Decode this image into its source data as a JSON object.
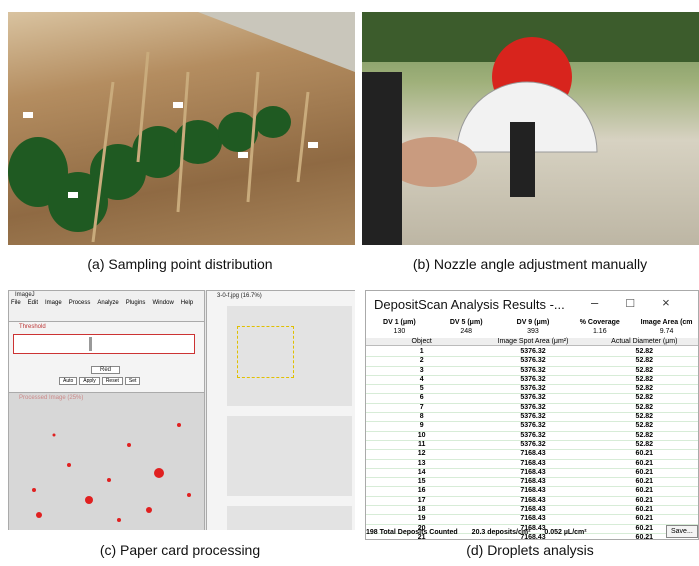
{
  "panels": [
    {
      "caption": "(a) Sampling point distribution"
    },
    {
      "caption": "(b) Nozzle angle adjustment manually"
    },
    {
      "caption": "(c) Paper card processing",
      "imagej": {
        "title": "ImageJ",
        "menu": [
          "File",
          "Edit",
          "Image",
          "Process",
          "Analyze",
          "Plugins",
          "Window",
          "Help"
        ],
        "threshold_title": "Threshold",
        "dropdown": "Red",
        "buttons": [
          "Auto",
          "Apply",
          "Reset",
          "Set"
        ],
        "processed_title": "Processed Image (25%)",
        "photo_title": "3-0-f.jpg (16.7%)"
      }
    },
    {
      "caption": "(d) Droplets analysis",
      "window": {
        "title": "DepositScan Analysis Results -...",
        "stats": [
          {
            "label": "DV 1 (μm)",
            "value": "130"
          },
          {
            "label": "DV 5 (μm)",
            "value": "248"
          },
          {
            "label": "DV 9 (μm)",
            "value": "393"
          },
          {
            "label": "% Coverage",
            "value": "1.16"
          },
          {
            "label": "Image Area (cm",
            "value": "9.74"
          }
        ],
        "columns": [
          "Object",
          "Image Spot Area (μm²)",
          "Actual Diameter (μm)"
        ],
        "rows": [
          [
            "1",
            "5376.32",
            "52.82"
          ],
          [
            "2",
            "5376.32",
            "52.82"
          ],
          [
            "3",
            "5376.32",
            "52.82"
          ],
          [
            "4",
            "5376.32",
            "52.82"
          ],
          [
            "5",
            "5376.32",
            "52.82"
          ],
          [
            "6",
            "5376.32",
            "52.82"
          ],
          [
            "7",
            "5376.32",
            "52.82"
          ],
          [
            "8",
            "5376.32",
            "52.82"
          ],
          [
            "9",
            "5376.32",
            "52.82"
          ],
          [
            "10",
            "5376.32",
            "52.82"
          ],
          [
            "11",
            "5376.32",
            "52.82"
          ],
          [
            "12",
            "7168.43",
            "60.21"
          ],
          [
            "13",
            "7168.43",
            "60.21"
          ],
          [
            "14",
            "7168.43",
            "60.21"
          ],
          [
            "15",
            "7168.43",
            "60.21"
          ],
          [
            "16",
            "7168.43",
            "60.21"
          ],
          [
            "17",
            "7168.43",
            "60.21"
          ],
          [
            "18",
            "7168.43",
            "60.21"
          ],
          [
            "19",
            "7168.43",
            "60.21"
          ],
          [
            "20",
            "7168.43",
            "60.21"
          ],
          [
            "21",
            "7168.43",
            "60.21"
          ]
        ],
        "footer": [
          "198 Total Deposits Counted",
          "20.3 deposits/cm²",
          "0.052 µL/cm²"
        ],
        "button": "Save..."
      }
    }
  ]
}
